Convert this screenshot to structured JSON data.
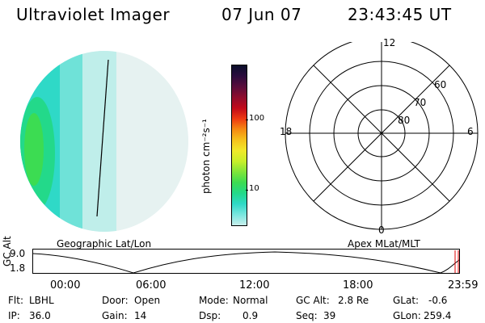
{
  "header": {
    "title": "Ultraviolet Imager",
    "date": "07 Jun 07",
    "time": "23:43:45 UT"
  },
  "colorbar": {
    "unit_label": "photon cm⁻²s⁻¹",
    "ticks": [
      "100",
      "10"
    ],
    "colors": [
      "#0a0f2b",
      "#2b0b3d",
      "#5a0d3b",
      "#8e0c2d",
      "#c10a1a",
      "#ee3a12",
      "#f58a12",
      "#f5c21c",
      "#f0e92a",
      "#c8ef2a",
      "#7fe53a",
      "#3cdc52",
      "#23d98a",
      "#2fd9c7",
      "#7ae6df",
      "#c9efec"
    ]
  },
  "earth_labels": {
    "left": "Geographic Lat/Lon"
  },
  "polar": {
    "label_12": "12",
    "label_18": "18",
    "label_6": "6",
    "label_0": "0",
    "lat_60": "60",
    "lat_70": "70",
    "lat_80": "80",
    "caption": "Apex MLat/MLT"
  },
  "altitude_plot": {
    "title": "GC Alt",
    "y_ticks": [
      "9.0",
      "1.8"
    ],
    "x_ticks": [
      "00:00",
      "06:00",
      "12:00",
      "18:00",
      "23:59"
    ]
  },
  "info": {
    "flt_label": "Flt:",
    "flt_value": "LBHL",
    "door_label": "Door:",
    "door_value": "Open",
    "mode_label": "Mode:",
    "mode_value": "Normal",
    "gcalt_label": "GC Alt:",
    "gcalt_value": "2.8 Re",
    "glat_label": "GLat:",
    "glat_value": "-0.6",
    "ip_label": "IP:",
    "ip_value": "36.0",
    "gain_label": "Gain:",
    "gain_value": "14",
    "dsp_label": "Dsp:",
    "dsp_value": "0.9",
    "seq_label": "Seq:",
    "seq_value": "39",
    "glon_label": "GLon:",
    "glon_value": "259.4"
  }
}
